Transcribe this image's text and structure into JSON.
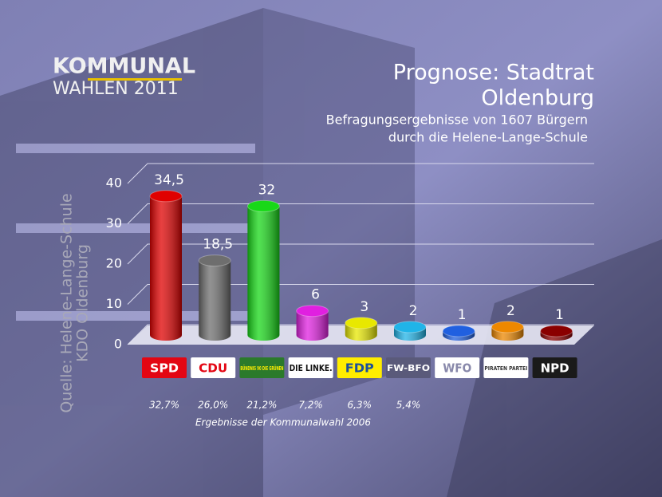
{
  "logo": {
    "line1": "KOMMUNAL",
    "line2": "WAHLEN 2011"
  },
  "source": {
    "line1": "Quelle: Helene-Lange-Schule",
    "line2": "KDO Oldenburg"
  },
  "chart_data": {
    "type": "bar",
    "title": [
      "Prognose: Stadtrat",
      "Oldenburg"
    ],
    "subtitle": [
      "Befragungsergebnisse von 1607 Bürgern",
      "durch die Helene-Lange-Schule"
    ],
    "categories": [
      "SPD",
      "CDU",
      "BÜNDNIS 90 DIE GRÜNEN",
      "DIE LINKE.",
      "FDP",
      "FW-BFO",
      "WFO",
      "PIRATEN PARTEI",
      "NPD"
    ],
    "category_colors": [
      "#e30613",
      "#ffffff",
      "#2b7a2b",
      "#ffffff",
      "#ffed00",
      "#5a5a7a",
      "#ffffff",
      "#ffffff",
      "#1a1a1a"
    ],
    "category_text_colors": [
      "#ffffff",
      "#e30613",
      "#ffee00",
      "#111111",
      "#1a4f9c",
      "#ffffff",
      "#8888aa",
      "#333333",
      "#ffffff"
    ],
    "values": [
      34.5,
      18.5,
      32,
      6,
      3,
      2,
      1,
      2,
      1
    ],
    "value_labels": [
      "34,5",
      "18,5",
      "32",
      "6",
      "3",
      "2",
      "1",
      "2",
      "1"
    ],
    "colors": [
      "#e00000",
      "#6e6e6e",
      "#18d818",
      "#e020e0",
      "#e8e800",
      "#20b4e8",
      "#2060e0",
      "#ee8800",
      "#8a0000"
    ],
    "ylim": [
      0,
      40
    ],
    "yticks": [
      0,
      10,
      20,
      30,
      40
    ],
    "grid": true,
    "previous": {
      "label": "Ergebnisse der Kommunalwahl 2006",
      "values": [
        32.7,
        26.0,
        21.2,
        7.2,
        6.3,
        5.4
      ],
      "value_labels": [
        "32,7%",
        "26,0%",
        "21,2%",
        "7,2%",
        "6,3%",
        "5,4%"
      ]
    }
  }
}
